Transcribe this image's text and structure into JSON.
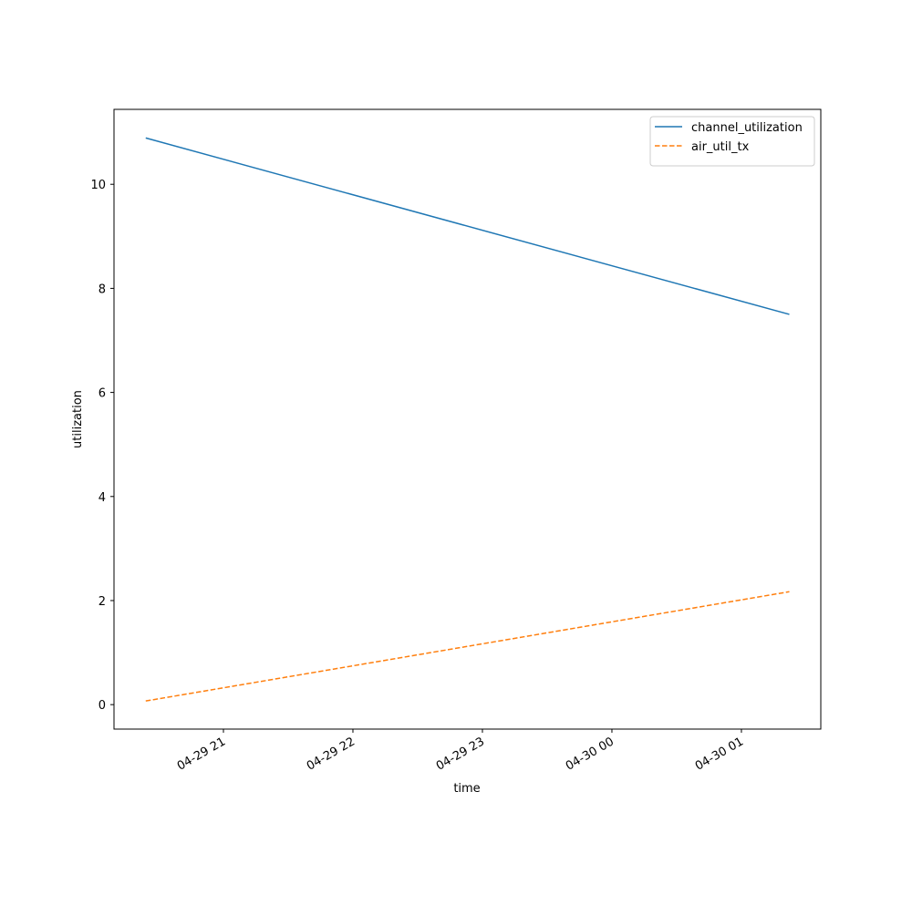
{
  "chart_data": {
    "type": "line",
    "x_label": "time",
    "y_label": "utilization",
    "x": [
      20.4,
      25.37
    ],
    "series": [
      {
        "name": "channel_utilization",
        "color": "#1f77b4",
        "linestyle": "solid",
        "values": [
          10.89,
          7.5
        ]
      },
      {
        "name": "air_util_tx",
        "color": "#ff7f0e",
        "linestyle": "dashed",
        "values": [
          0.07,
          2.17
        ]
      }
    ],
    "xlim": [
      20.155,
      25.613
    ],
    "xticks": [
      {
        "value": 21,
        "label": "04-29 21"
      },
      {
        "value": 22,
        "label": "04-29 22"
      },
      {
        "value": 23,
        "label": "04-29 23"
      },
      {
        "value": 24,
        "label": "04-30 00"
      },
      {
        "value": 25,
        "label": "04-30 01"
      }
    ],
    "ylim": [
      -0.47,
      11.44
    ],
    "yticks": [
      0,
      2,
      4,
      6,
      8,
      10
    ],
    "legend": "upper right",
    "grid": false
  }
}
